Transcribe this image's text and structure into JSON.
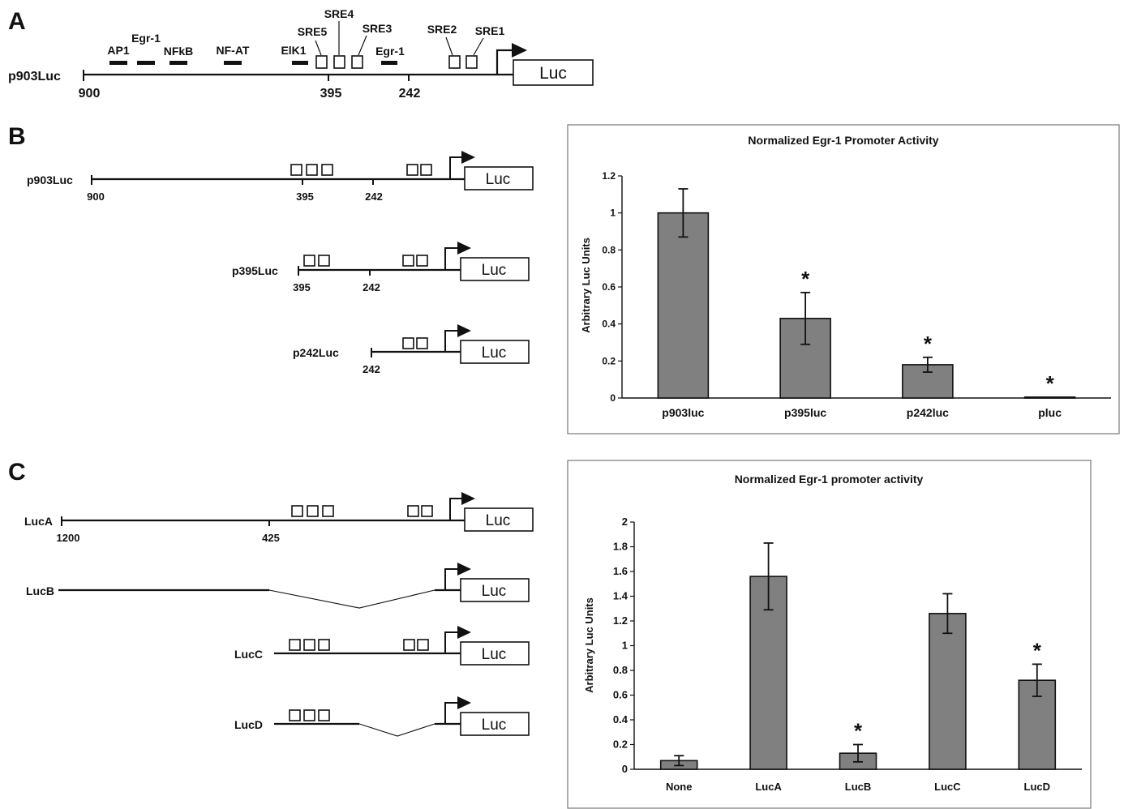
{
  "panel_a": {
    "letter": "A",
    "construct": "p903Luc",
    "luc_label": "Luc",
    "coords": [
      "900",
      "395",
      "242"
    ],
    "sites": [
      "AP1",
      "Egr-1",
      "NFkB",
      "NF-AT",
      "ElK1",
      "SRE5",
      "SRE4",
      "SRE3",
      "Egr-1",
      "SRE2",
      "SRE1"
    ]
  },
  "panel_b": {
    "letter": "B",
    "constructs": [
      {
        "name": "p903Luc",
        "luc": "Luc",
        "coords": [
          "900",
          "395",
          "242"
        ]
      },
      {
        "name": "p395Luc",
        "luc": "Luc",
        "coords": [
          "395",
          "242"
        ]
      },
      {
        "name": "p242Luc",
        "luc": "Luc",
        "coords": [
          "242"
        ]
      }
    ]
  },
  "panel_c": {
    "letter": "C",
    "constructs": [
      {
        "name": "LucA",
        "luc": "Luc",
        "coords": [
          "1200",
          "425"
        ]
      },
      {
        "name": "LucB",
        "luc": "Luc",
        "coords": []
      },
      {
        "name": "LucC",
        "luc": "Luc",
        "coords": []
      },
      {
        "name": "LucD",
        "luc": "Luc",
        "coords": []
      }
    ]
  },
  "chart_data": [
    {
      "type": "bar",
      "title": "Normalized Egr-1 Promoter Activity",
      "ylabel": "Arbitrary Luc Units",
      "xlabel": "",
      "categories": [
        "p903luc",
        "p395luc",
        "p242luc",
        "pluc"
      ],
      "values": [
        1.0,
        0.43,
        0.18,
        0.005
      ],
      "errors": [
        0.13,
        0.14,
        0.04,
        0.0
      ],
      "significant": [
        false,
        true,
        true,
        true
      ],
      "significance_marker": "*",
      "ylim": [
        0,
        1.2
      ],
      "yticks": [
        "0",
        "0.2",
        "0.4",
        "0.6",
        "0.8",
        "1",
        "1.2"
      ],
      "bar_color": "#808080",
      "grid": false,
      "legend": "none"
    },
    {
      "type": "bar",
      "title": "Normalized Egr-1 promoter activity",
      "ylabel": "Arbitrary Luc Units",
      "xlabel": "",
      "categories": [
        "None",
        "LucA",
        "LucB",
        "LucC",
        "LucD"
      ],
      "values": [
        0.07,
        1.56,
        0.13,
        1.26,
        0.72
      ],
      "errors": [
        0.04,
        0.27,
        0.07,
        0.16,
        0.13
      ],
      "significant": [
        false,
        false,
        true,
        false,
        true
      ],
      "significance_marker": "*",
      "ylim": [
        0,
        2
      ],
      "yticks": [
        "0",
        "0.2",
        "0.4",
        "0.6",
        "0.8",
        "1",
        "1.2",
        "1.4",
        "1.6",
        "1.8",
        "2"
      ],
      "bar_color": "#808080",
      "grid": false,
      "legend": "none"
    }
  ]
}
